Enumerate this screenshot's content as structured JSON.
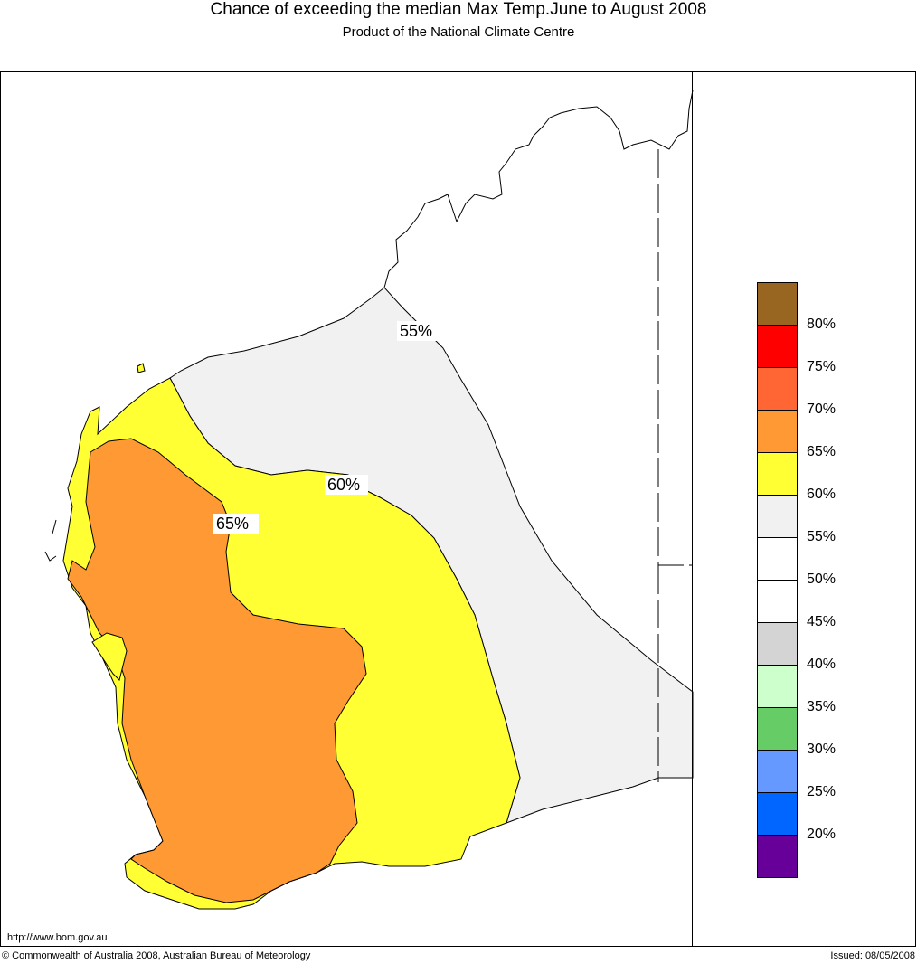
{
  "header": {
    "title": "Chance of exceeding the median Max Temp.June to August 2008",
    "subtitle": "Product of the National Climate Centre"
  },
  "map": {
    "contour_labels": [
      "55%",
      "60%",
      "65%"
    ],
    "region_colors": {
      "c55_60": "#f1f1f1",
      "c60_65": "#ffff33",
      "c65_70": "#ff9933"
    }
  },
  "legend": {
    "items": [
      {
        "color": "#996622"
      },
      {
        "color": "#ff0000",
        "label": "80%"
      },
      {
        "color": "#ff6633",
        "label": "75%"
      },
      {
        "color": "#ff9933",
        "label": "70%"
      },
      {
        "color": "#ffff33",
        "label": "65%"
      },
      {
        "color": "#f1f1f1",
        "label": "60%"
      },
      {
        "color": "#ffffff",
        "label": "55%"
      },
      {
        "color": "#ffffff",
        "label": "50%"
      },
      {
        "color": "#d4d4d4",
        "label": "45%"
      },
      {
        "color": "#ccffcc",
        "label": "40%"
      },
      {
        "color": "#66cc66",
        "label": "35%"
      },
      {
        "color": "#6699ff",
        "label": "30%"
      },
      {
        "color": "#0066ff",
        "label": "25%"
      },
      {
        "color": "#660099",
        "label": "20%"
      }
    ]
  },
  "footer": {
    "url": "http://www.bom.gov.au",
    "copyright": "© Commonwealth of Australia 2008, Australian Bureau of Meteorology",
    "issued": "Issued: 08/05/2008"
  }
}
